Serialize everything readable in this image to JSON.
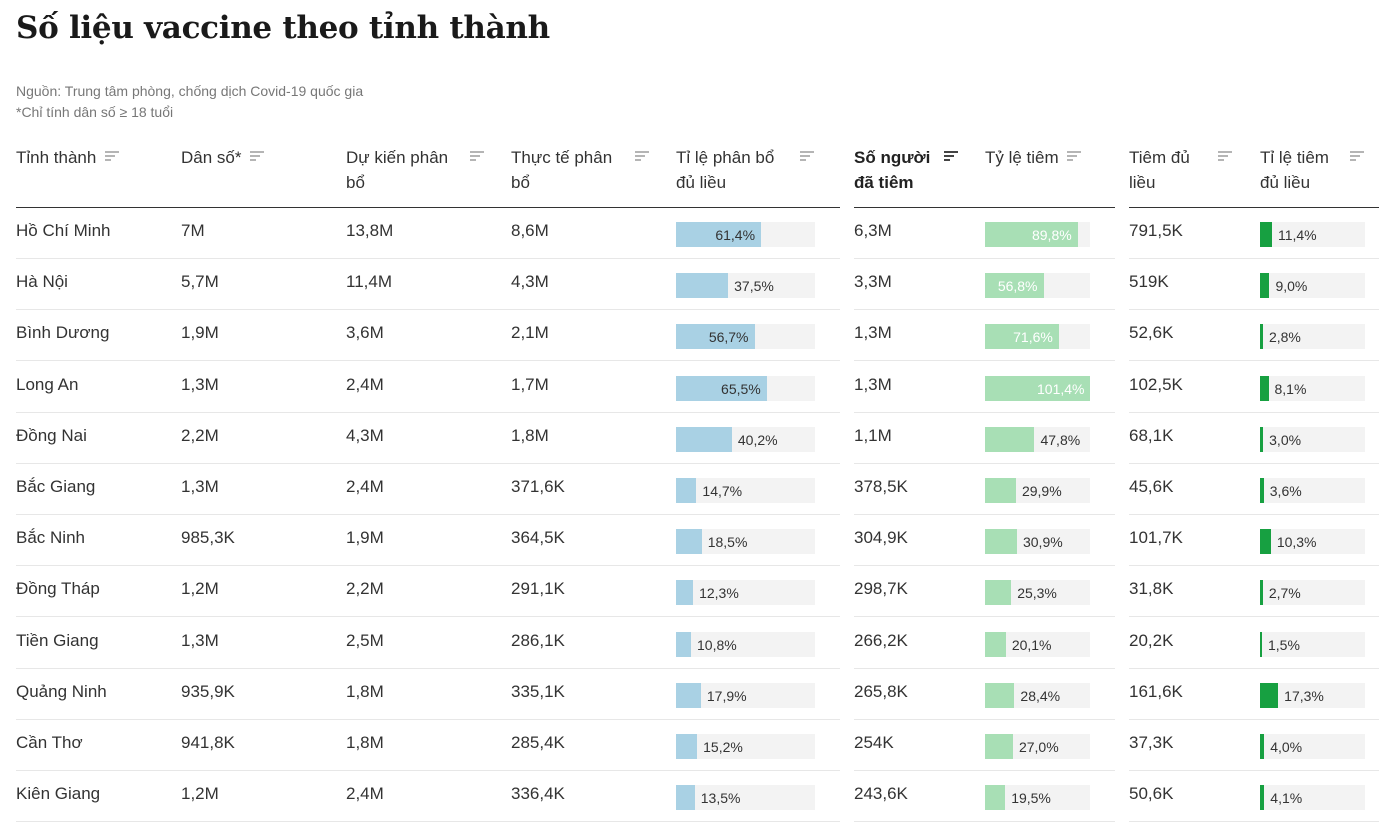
{
  "title": "Số liệu vaccine theo tỉnh thành",
  "source_line1": "Nguồn: Trung tâm phòng, chống dịch Covid-19 quốc gia",
  "source_line2": "*Chỉ tính dân số ≥ 18 tuổi",
  "colors": {
    "blue": "#a9d1e4",
    "green_light": "#a8dfb5",
    "green_dark": "#17a041",
    "bar_bg": "#f3f3f3"
  },
  "headers": {
    "province": [
      "Tỉnh thành"
    ],
    "population": [
      "Dân số*"
    ],
    "planned": [
      "Dự kiến phân",
      "bổ"
    ],
    "actual": [
      "Thực tế phân",
      "bổ"
    ],
    "alloc_rate": [
      "Tỉ lệ phân bổ",
      "đủ liều"
    ],
    "vaccinated": [
      "Số người",
      "đã tiêm"
    ],
    "vacc_rate": [
      "Tỷ lệ tiêm"
    ],
    "full": [
      "Tiêm đủ",
      "liều"
    ],
    "full_rate": [
      "Tỉ lệ tiêm",
      "đủ liều"
    ]
  },
  "sort_icon": "sort-lines-icon",
  "rows": [
    {
      "province": "Hồ Chí Minh",
      "population": "7M",
      "planned": "13,8M",
      "actual": "8,6M",
      "alloc_rate": 61.4,
      "alloc_label": "61,4%",
      "vaccinated": "6,3M",
      "vacc_rate": 89.8,
      "vacc_label": "89,8%",
      "full": "791,5K",
      "full_rate": 11.4,
      "full_label": "11,4%"
    },
    {
      "province": "Hà Nội",
      "population": "5,7M",
      "planned": "11,4M",
      "actual": "4,3M",
      "alloc_rate": 37.5,
      "alloc_label": "37,5%",
      "vaccinated": "3,3M",
      "vacc_rate": 56.8,
      "vacc_label": "56,8%",
      "full": "519K",
      "full_rate": 9.0,
      "full_label": "9,0%"
    },
    {
      "province": "Bình Dương",
      "population": "1,9M",
      "planned": "3,6M",
      "actual": "2,1M",
      "alloc_rate": 56.7,
      "alloc_label": "56,7%",
      "vaccinated": "1,3M",
      "vacc_rate": 71.6,
      "vacc_label": "71,6%",
      "full": "52,6K",
      "full_rate": 2.8,
      "full_label": "2,8%"
    },
    {
      "province": "Long An",
      "population": "1,3M",
      "planned": "2,4M",
      "actual": "1,7M",
      "alloc_rate": 65.5,
      "alloc_label": "65,5%",
      "vaccinated": "1,3M",
      "vacc_rate": 101.4,
      "vacc_label": "101,4%",
      "full": "102,5K",
      "full_rate": 8.1,
      "full_label": "8,1%"
    },
    {
      "province": "Đồng Nai",
      "population": "2,2M",
      "planned": "4,3M",
      "actual": "1,8M",
      "alloc_rate": 40.2,
      "alloc_label": "40,2%",
      "vaccinated": "1,1M",
      "vacc_rate": 47.8,
      "vacc_label": "47,8%",
      "full": "68,1K",
      "full_rate": 3.0,
      "full_label": "3,0%"
    },
    {
      "province": "Bắc Giang",
      "population": "1,3M",
      "planned": "2,4M",
      "actual": "371,6K",
      "alloc_rate": 14.7,
      "alloc_label": "14,7%",
      "vaccinated": "378,5K",
      "vacc_rate": 29.9,
      "vacc_label": "29,9%",
      "full": "45,6K",
      "full_rate": 3.6,
      "full_label": "3,6%"
    },
    {
      "province": "Bắc Ninh",
      "population": "985,3K",
      "planned": "1,9M",
      "actual": "364,5K",
      "alloc_rate": 18.5,
      "alloc_label": "18,5%",
      "vaccinated": "304,9K",
      "vacc_rate": 30.9,
      "vacc_label": "30,9%",
      "full": "101,7K",
      "full_rate": 10.3,
      "full_label": "10,3%"
    },
    {
      "province": "Đồng Tháp",
      "population": "1,2M",
      "planned": "2,2M",
      "actual": "291,1K",
      "alloc_rate": 12.3,
      "alloc_label": "12,3%",
      "vaccinated": "298,7K",
      "vacc_rate": 25.3,
      "vacc_label": "25,3%",
      "full": "31,8K",
      "full_rate": 2.7,
      "full_label": "2,7%"
    },
    {
      "province": "Tiền Giang",
      "population": "1,3M",
      "planned": "2,5M",
      "actual": "286,1K",
      "alloc_rate": 10.8,
      "alloc_label": "10,8%",
      "vaccinated": "266,2K",
      "vacc_rate": 20.1,
      "vacc_label": "20,1%",
      "full": "20,2K",
      "full_rate": 1.5,
      "full_label": "1,5%"
    },
    {
      "province": "Quảng Ninh",
      "population": "935,9K",
      "planned": "1,8M",
      "actual": "335,1K",
      "alloc_rate": 17.9,
      "alloc_label": "17,9%",
      "vaccinated": "265,8K",
      "vacc_rate": 28.4,
      "vacc_label": "28,4%",
      "full": "161,6K",
      "full_rate": 17.3,
      "full_label": "17,3%"
    },
    {
      "province": "Cần Thơ",
      "population": "941,8K",
      "planned": "1,8M",
      "actual": "285,4K",
      "alloc_rate": 15.2,
      "alloc_label": "15,2%",
      "vaccinated": "254K",
      "vacc_rate": 27.0,
      "vacc_label": "27,0%",
      "full": "37,3K",
      "full_rate": 4.0,
      "full_label": "4,0%"
    },
    {
      "province": "Kiên Giang",
      "population": "1,2M",
      "planned": "2,4M",
      "actual": "336,4K",
      "alloc_rate": 13.5,
      "alloc_label": "13,5%",
      "vaccinated": "243,6K",
      "vacc_rate": 19.5,
      "vacc_label": "19,5%",
      "full": "50,6K",
      "full_rate": 4.1,
      "full_label": "4,1%"
    }
  ]
}
